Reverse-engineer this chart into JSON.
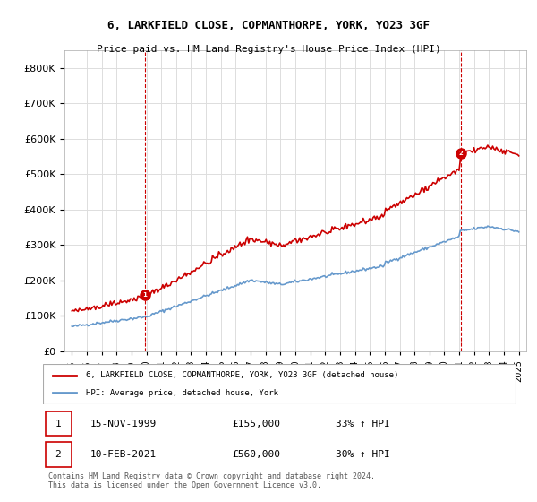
{
  "title": "6, LARKFIELD CLOSE, COPMANTHORPE, YORK, YO23 3GF",
  "subtitle": "Price paid vs. HM Land Registry's House Price Index (HPI)",
  "legend_line1": "6, LARKFIELD CLOSE, COPMANTHORPE, YORK, YO23 3GF (detached house)",
  "legend_line2": "HPI: Average price, detached house, York",
  "sale1_label": "1",
  "sale1_date": "15-NOV-1999",
  "sale1_price": "£155,000",
  "sale1_hpi": "33% ↑ HPI",
  "sale2_label": "2",
  "sale2_date": "10-FEB-2021",
  "sale2_price": "£560,000",
  "sale2_hpi": "30% ↑ HPI",
  "footer": "Contains HM Land Registry data © Crown copyright and database right 2024.\nThis data is licensed under the Open Government Licence v3.0.",
  "property_color": "#cc0000",
  "hpi_color": "#6699cc",
  "ylim": [
    0,
    850000
  ],
  "yticks": [
    0,
    100000,
    200000,
    300000,
    400000,
    500000,
    600000,
    700000,
    800000
  ],
  "background_color": "#ffffff",
  "grid_color": "#dddddd",
  "sale1_year": 1999.88,
  "sale2_year": 2021.12
}
